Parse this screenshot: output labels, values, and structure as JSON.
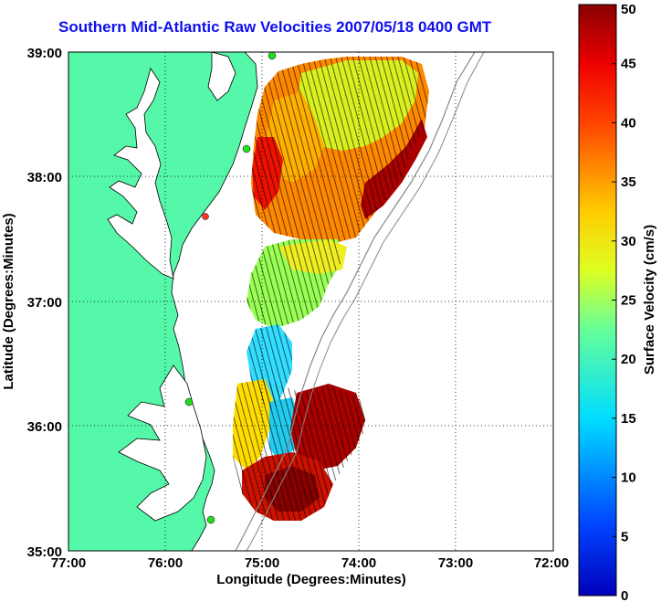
{
  "title": "Southern Mid-Atlantic Raw Velocities 2007/05/18 0400 GMT",
  "x_axis": {
    "label": "Longitude (Degrees:Minutes)",
    "ticks": [
      "77:00",
      "76:00",
      "75:00",
      "74:00",
      "73:00",
      "72:00"
    ]
  },
  "y_axis": {
    "label": "Latitude (Degrees:Minutes)",
    "ticks": [
      "39:00",
      "38:00",
      "37:00",
      "36:00",
      "35:00"
    ]
  },
  "colorbar": {
    "label": "Surface Velocity (cm/s)",
    "ticks": [
      "50",
      "45",
      "40",
      "35",
      "30",
      "25",
      "20",
      "15",
      "10",
      "5",
      "0"
    ],
    "min": 0,
    "max": 50,
    "colormap": "jet"
  },
  "colors": {
    "land": "#55f7a8",
    "title": "#1010ee",
    "station_marker": "#22dd22",
    "station_marker_red": "#ff3322"
  },
  "chart_data": {
    "type": "heatmap",
    "xlim": [
      -77,
      -72
    ],
    "ylim": [
      35,
      39
    ],
    "grid": true,
    "velocity_regions": [
      {
        "lon": -74.5,
        "lat": 38.5,
        "speed_cm_s": 35
      },
      {
        "lon": -74.0,
        "lat": 38.7,
        "speed_cm_s": 25
      },
      {
        "lon": -73.6,
        "lat": 38.0,
        "speed_cm_s": 45
      },
      {
        "lon": -74.7,
        "lat": 37.2,
        "speed_cm_s": 22
      },
      {
        "lon": -74.9,
        "lat": 36.7,
        "speed_cm_s": 15
      },
      {
        "lon": -74.2,
        "lat": 35.9,
        "speed_cm_s": 45
      },
      {
        "lon": -74.7,
        "lat": 35.4,
        "speed_cm_s": 45
      },
      {
        "lon": -75.0,
        "lat": 35.8,
        "speed_cm_s": 20
      }
    ],
    "stations": [
      {
        "lon": -74.9,
        "lat": 38.95
      },
      {
        "lon": -75.15,
        "lat": 38.25
      },
      {
        "lon": -75.55,
        "lat": 37.7
      },
      {
        "lon": -75.7,
        "lat": 36.2
      },
      {
        "lon": -75.6,
        "lat": 35.25
      }
    ]
  }
}
